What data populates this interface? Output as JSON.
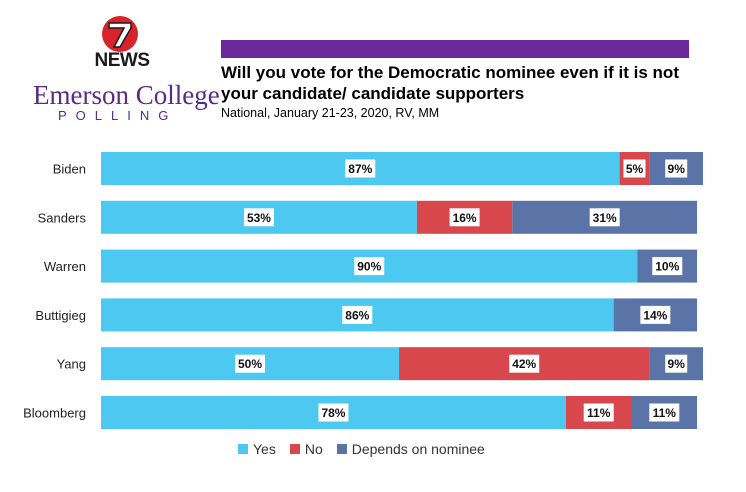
{
  "branding": {
    "logo_number": "7",
    "news_label": "NEWS",
    "college_name": "Emerson College",
    "polling_label": "POLLING"
  },
  "colors": {
    "yes": "#4dc8f0",
    "no": "#d8474b",
    "depends": "#5b74a8",
    "header_bar": "#6a2a9e",
    "brand_purple": "#5a2a85",
    "logo_red": "#d8232a"
  },
  "chart_data": {
    "type": "bar",
    "orientation": "horizontal",
    "stacked": true,
    "title": "Will you vote for the Democratic nominee even if it is not your candidate/ candidate supporters",
    "subtitle": "National, January 21-23, 2020, RV, MM",
    "categories": [
      "Biden",
      "Sanders",
      "Warren",
      "Buttigieg",
      "Yang",
      "Bloomberg"
    ],
    "series": [
      {
        "name": "Yes",
        "values": [
          87,
          53,
          90,
          86,
          50,
          78
        ],
        "labels": [
          "87%",
          "53%",
          "90%",
          "86%",
          "50%",
          "78%"
        ]
      },
      {
        "name": "No",
        "values": [
          5,
          16,
          0,
          0,
          42,
          11
        ],
        "labels": [
          "5%",
          "16%",
          "",
          "",
          "42%",
          "11%"
        ]
      },
      {
        "name": "Depends on nominee",
        "values": [
          9,
          31,
          10,
          14,
          9,
          11
        ],
        "labels": [
          "9%",
          "31%",
          "10%",
          "14%",
          "9%",
          "11%"
        ]
      }
    ],
    "xlim": [
      0,
      102
    ],
    "legend_position": "bottom",
    "grid": false
  }
}
